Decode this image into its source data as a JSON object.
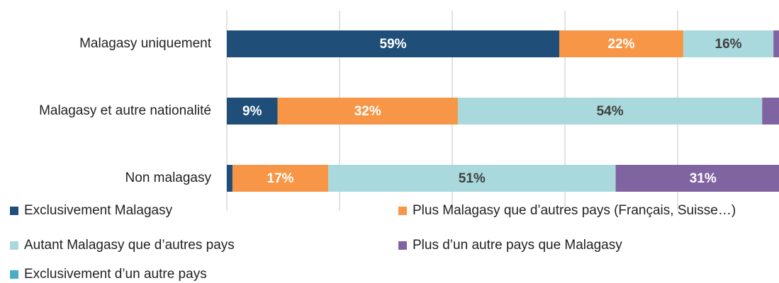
{
  "chart_data": {
    "type": "stacked_barh",
    "categories": [
      "Malagasy uniquement",
      "Malagasy et autre nationalité",
      "Non malagasy"
    ],
    "series": [
      {
        "name": "Exclusivement Malagasy",
        "color": "#1f4e79",
        "values": [
          59,
          9,
          1
        ],
        "value_labels": [
          "59%",
          "9%",
          null
        ]
      },
      {
        "name": "Plus Malagasy que d’autres pays (Français, Suisse…)",
        "color": "#f79646",
        "values": [
          22,
          32,
          17
        ],
        "value_labels": [
          "22%",
          "32%",
          "17%"
        ]
      },
      {
        "name": "Autant Malagasy que d’autres pays",
        "color": "#a9d9dc",
        "values": [
          16,
          54,
          51
        ],
        "value_labels": [
          "16%",
          "54%",
          "51%"
        ]
      },
      {
        "name": "Plus d’un autre pays que Malagasy",
        "color": "#8064a2",
        "values": [
          2,
          4,
          31
        ],
        "value_labels": [
          null,
          null,
          "31%"
        ]
      },
      {
        "name": "Exclusivement d’un autre pays",
        "color": "#4bacc6",
        "values": [
          1,
          1,
          0
        ],
        "value_labels": [
          null,
          null,
          null
        ]
      }
    ],
    "xlim": [
      0,
      100
    ],
    "xticks": [
      0,
      20,
      40,
      60,
      80,
      100
    ],
    "grid": true
  }
}
